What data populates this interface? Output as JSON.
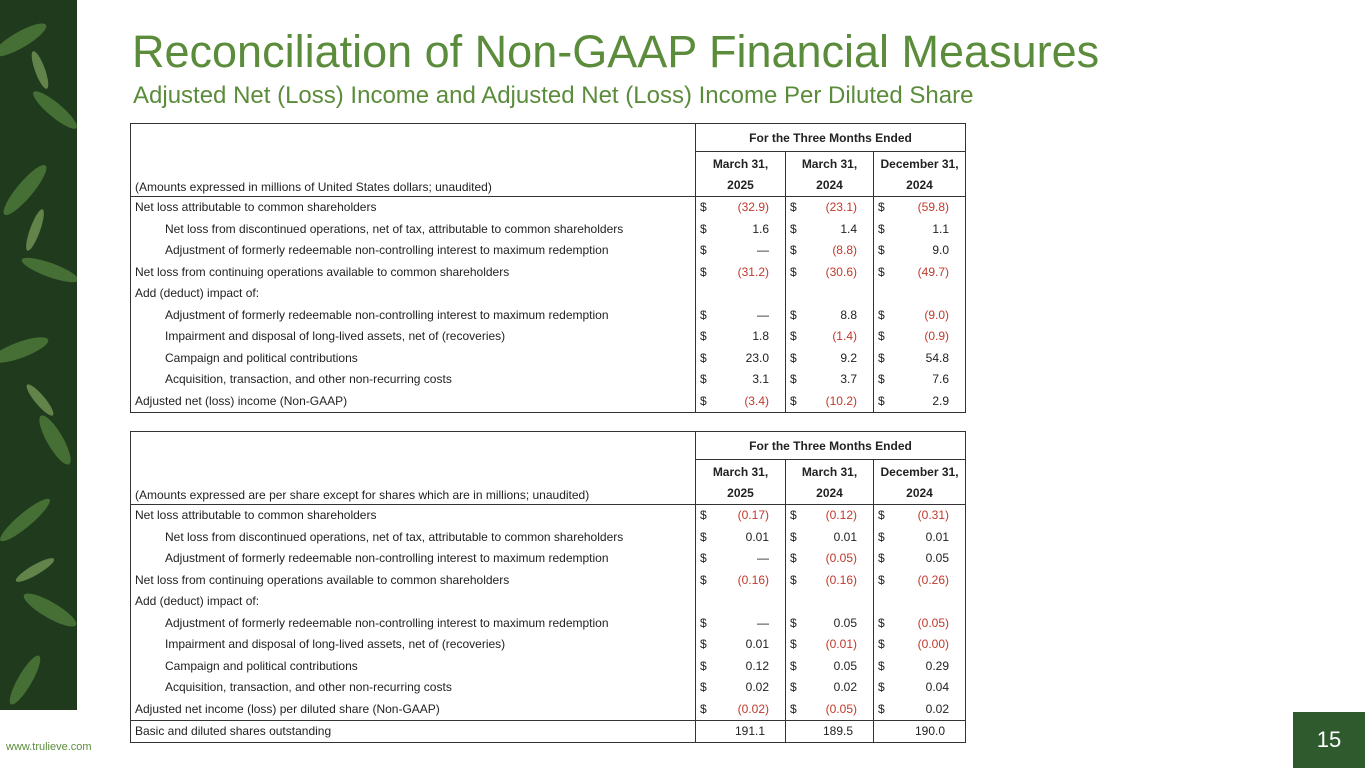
{
  "title": "Reconciliation of Non-GAAP Financial Measures",
  "subtitle": "Adjusted Net (Loss) Income and Adjusted Net (Loss) Income Per Diluted Share",
  "tables": [
    {
      "group_header": "For the Three Months Ended",
      "caption": "(Amounts expressed in millions of United States dollars; unaudited)",
      "currency_symbol": "$",
      "columns": [
        [
          "March 31,",
          "2025"
        ],
        [
          "March 31,",
          "2024"
        ],
        [
          "December 31,",
          "2024"
        ]
      ],
      "rows": [
        {
          "label": "Net loss attributable to common shareholders",
          "indent": false,
          "values": [
            "(32.9)",
            "(23.1)",
            "(59.8)"
          ]
        },
        {
          "label": "Net loss from discontinued operations, net of tax, attributable to common shareholders",
          "indent": true,
          "values": [
            "1.6",
            "1.4",
            "1.1"
          ]
        },
        {
          "label": "Adjustment of formerly redeemable non-controlling interest to maximum redemption",
          "indent": true,
          "values": [
            "—",
            "(8.8)",
            "9.0"
          ]
        },
        {
          "label": "Net loss from continuing operations available to common shareholders",
          "indent": false,
          "values": [
            "(31.2)",
            "(30.6)",
            "(49.7)"
          ]
        },
        {
          "label": "Add (deduct) impact of:",
          "indent": false
        },
        {
          "label": "Adjustment of formerly redeemable non-controlling interest to maximum redemption",
          "indent": true,
          "values": [
            "—",
            "8.8",
            "(9.0)"
          ]
        },
        {
          "label": "Impairment and disposal of long-lived assets, net of (recoveries)",
          "indent": true,
          "values": [
            "1.8",
            "(1.4)",
            "(0.9)"
          ]
        },
        {
          "label": "Campaign and political contributions",
          "indent": true,
          "values": [
            "23.0",
            "9.2",
            "54.8"
          ]
        },
        {
          "label": "Acquisition, transaction, and other non-recurring costs",
          "indent": true,
          "values": [
            "3.1",
            "3.7",
            "7.6"
          ]
        },
        {
          "label": "Adjusted net (loss) income (Non-GAAP)",
          "indent": false,
          "values": [
            "(3.4)",
            "(10.2)",
            "2.9"
          ]
        }
      ]
    },
    {
      "group_header": "For the Three Months Ended",
      "caption": "(Amounts expressed are per share except for shares which are in millions; unaudited)",
      "currency_symbol": "$",
      "columns": [
        [
          "March 31,",
          "2025"
        ],
        [
          "March 31,",
          "2024"
        ],
        [
          "December 31,",
          "2024"
        ]
      ],
      "rows": [
        {
          "label": "Net loss attributable to common shareholders",
          "indent": false,
          "values": [
            "(0.17)",
            "(0.12)",
            "(0.31)"
          ]
        },
        {
          "label": "Net loss from discontinued operations, net of tax, attributable to common shareholders",
          "indent": true,
          "values": [
            "0.01",
            "0.01",
            "0.01"
          ]
        },
        {
          "label": "Adjustment of formerly redeemable non-controlling interest to maximum redemption",
          "indent": true,
          "values": [
            "—",
            "(0.05)",
            "0.05"
          ]
        },
        {
          "label": "Net loss from continuing operations available to common shareholders",
          "indent": false,
          "values": [
            "(0.16)",
            "(0.16)",
            "(0.26)"
          ]
        },
        {
          "label": "Add (deduct) impact of:",
          "indent": false
        },
        {
          "label": "Adjustment of formerly redeemable non-controlling interest to maximum redemption",
          "indent": true,
          "values": [
            "—",
            "0.05",
            "(0.05)"
          ]
        },
        {
          "label": "Impairment and disposal of long-lived assets, net of (recoveries)",
          "indent": true,
          "values": [
            "0.01",
            "(0.01)",
            "(0.00)"
          ]
        },
        {
          "label": "Campaign and political contributions",
          "indent": true,
          "values": [
            "0.12",
            "0.05",
            "0.29"
          ]
        },
        {
          "label": "Acquisition, transaction, and other non-recurring costs",
          "indent": true,
          "values": [
            "0.02",
            "0.02",
            "0.04"
          ]
        },
        {
          "label": "Adjusted net income (loss) per diluted share (Non-GAAP)",
          "indent": false,
          "values": [
            "(0.02)",
            "(0.05)",
            "0.02"
          ]
        },
        {
          "label": "Basic and diluted shares outstanding",
          "indent": false,
          "currency": false,
          "values": [
            "191.1",
            "189.5",
            "190.0"
          ]
        }
      ]
    }
  ],
  "footer": "www.trulieve.com",
  "page_number": "15"
}
